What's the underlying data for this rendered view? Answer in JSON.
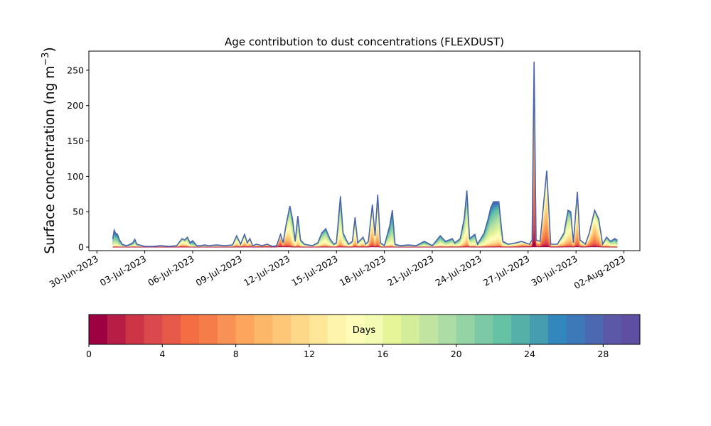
{
  "chart_data": {
    "type": "area",
    "stacked": true,
    "title": "Age contribution to dust concentrations (FLEXDUST)",
    "ylabel_text": "Surface concentration (ng m",
    "ylabel_exp": "−3",
    "ylabel_close": ")",
    "ylim": [
      -5,
      277
    ],
    "yticks": [
      0,
      50,
      100,
      150,
      200,
      250
    ],
    "x_start": "2023-06-29T12:00",
    "x_end": "2023-08-03T00:00",
    "xticks": [
      {
        "date": "2023-06-30",
        "label": "30-Jun-2023"
      },
      {
        "date": "2023-07-03",
        "label": "03-Jul-2023"
      },
      {
        "date": "2023-07-06",
        "label": "06-Jul-2023"
      },
      {
        "date": "2023-07-09",
        "label": "09-Jul-2023"
      },
      {
        "date": "2023-07-12",
        "label": "12-Jul-2023"
      },
      {
        "date": "2023-07-15",
        "label": "15-Jul-2023"
      },
      {
        "date": "2023-07-18",
        "label": "18-Jul-2023"
      },
      {
        "date": "2023-07-21",
        "label": "21-Jul-2023"
      },
      {
        "date": "2023-07-24",
        "label": "24-Jul-2023"
      },
      {
        "date": "2023-07-27",
        "label": "27-Jul-2023"
      },
      {
        "date": "2023-07-30",
        "label": "30-Jul-2023"
      },
      {
        "date": "2023-08-02",
        "label": "02-Aug-2023"
      }
    ],
    "total": [
      [
        "2023-07-01T00:00",
        12
      ],
      [
        "2023-07-01T02:00",
        24
      ],
      [
        "2023-07-01T04:00",
        20
      ],
      [
        "2023-07-01T07:00",
        18
      ],
      [
        "2023-07-01T10:00",
        10
      ],
      [
        "2023-07-01T14:00",
        4
      ],
      [
        "2023-07-01T20:00",
        2
      ],
      [
        "2023-07-02T00:00",
        3
      ],
      [
        "2023-07-02T06:00",
        6
      ],
      [
        "2023-07-02T09:00",
        11
      ],
      [
        "2023-07-02T12:00",
        4
      ],
      [
        "2023-07-03T00:00",
        1
      ],
      [
        "2023-07-03T12:00",
        1
      ],
      [
        "2023-07-04T00:00",
        2
      ],
      [
        "2023-07-04T12:00",
        1
      ],
      [
        "2023-07-05T00:00",
        2
      ],
      [
        "2023-07-05T08:00",
        12
      ],
      [
        "2023-07-05T12:00",
        10
      ],
      [
        "2023-07-05T16:00",
        14
      ],
      [
        "2023-07-05T20:00",
        6
      ],
      [
        "2023-07-06T00:00",
        9
      ],
      [
        "2023-07-06T06:00",
        2
      ],
      [
        "2023-07-06T12:00",
        2
      ],
      [
        "2023-07-06T18:00",
        3
      ],
      [
        "2023-07-07T00:00",
        2
      ],
      [
        "2023-07-07T12:00",
        3
      ],
      [
        "2023-07-08T00:00",
        2
      ],
      [
        "2023-07-08T12:00",
        3
      ],
      [
        "2023-07-08T18:00",
        16
      ],
      [
        "2023-07-09T00:00",
        4
      ],
      [
        "2023-07-09T06:00",
        18
      ],
      [
        "2023-07-09T10:00",
        6
      ],
      [
        "2023-07-09T14:00",
        12
      ],
      [
        "2023-07-09T18:00",
        2
      ],
      [
        "2023-07-10T00:00",
        4
      ],
      [
        "2023-07-10T08:00",
        2
      ],
      [
        "2023-07-10T16:00",
        4
      ],
      [
        "2023-07-11T00:00",
        1
      ],
      [
        "2023-07-11T06:00",
        2
      ],
      [
        "2023-07-11T12:00",
        18
      ],
      [
        "2023-07-11T16:00",
        6
      ],
      [
        "2023-07-11T20:00",
        30
      ],
      [
        "2023-07-12T02:00",
        58
      ],
      [
        "2023-07-12T06:00",
        40
      ],
      [
        "2023-07-12T10:00",
        8
      ],
      [
        "2023-07-12T14:00",
        44
      ],
      [
        "2023-07-12T18:00",
        10
      ],
      [
        "2023-07-13T00:00",
        4
      ],
      [
        "2023-07-13T12:00",
        2
      ],
      [
        "2023-07-13T20:00",
        6
      ],
      [
        "2023-07-14T02:00",
        20
      ],
      [
        "2023-07-14T08:00",
        26
      ],
      [
        "2023-07-14T14:00",
        12
      ],
      [
        "2023-07-14T20:00",
        4
      ],
      [
        "2023-07-15T00:00",
        6
      ],
      [
        "2023-07-15T06:00",
        72
      ],
      [
        "2023-07-15T10:00",
        20
      ],
      [
        "2023-07-15T18:00",
        4
      ],
      [
        "2023-07-16T00:00",
        8
      ],
      [
        "2023-07-16T04:00",
        42
      ],
      [
        "2023-07-16T08:00",
        6
      ],
      [
        "2023-07-16T16:00",
        14
      ],
      [
        "2023-07-16T20:00",
        4
      ],
      [
        "2023-07-17T00:00",
        8
      ],
      [
        "2023-07-17T06:00",
        60
      ],
      [
        "2023-07-17T10:00",
        16
      ],
      [
        "2023-07-17T14:00",
        74
      ],
      [
        "2023-07-17T18:00",
        6
      ],
      [
        "2023-07-18T00:00",
        2
      ],
      [
        "2023-07-18T08:00",
        30
      ],
      [
        "2023-07-18T12:00",
        52
      ],
      [
        "2023-07-18T16:00",
        4
      ],
      [
        "2023-07-19T00:00",
        2
      ],
      [
        "2023-07-19T12:00",
        3
      ],
      [
        "2023-07-20T00:00",
        2
      ],
      [
        "2023-07-20T12:00",
        8
      ],
      [
        "2023-07-21T00:00",
        2
      ],
      [
        "2023-07-21T12:00",
        16
      ],
      [
        "2023-07-21T20:00",
        8
      ],
      [
        "2023-07-22T06:00",
        12
      ],
      [
        "2023-07-22T10:00",
        6
      ],
      [
        "2023-07-22T18:00",
        12
      ],
      [
        "2023-07-23T00:00",
        40
      ],
      [
        "2023-07-23T04:00",
        80
      ],
      [
        "2023-07-23T08:00",
        12
      ],
      [
        "2023-07-23T16:00",
        18
      ],
      [
        "2023-07-23T20:00",
        4
      ],
      [
        "2023-07-24T06:00",
        20
      ],
      [
        "2023-07-24T12:00",
        40
      ],
      [
        "2023-07-24T16:00",
        56
      ],
      [
        "2023-07-24T20:00",
        64
      ],
      [
        "2023-07-25T04:00",
        64
      ],
      [
        "2023-07-25T10:00",
        8
      ],
      [
        "2023-07-25T18:00",
        4
      ],
      [
        "2023-07-26T06:00",
        6
      ],
      [
        "2023-07-26T14:00",
        8
      ],
      [
        "2023-07-26T20:00",
        6
      ],
      [
        "2023-07-27T02:00",
        4
      ],
      [
        "2023-07-27T06:00",
        10
      ],
      [
        "2023-07-27T09:00",
        262
      ],
      [
        "2023-07-27T12:00",
        10
      ],
      [
        "2023-07-27T18:00",
        8
      ],
      [
        "2023-07-28T04:00",
        108
      ],
      [
        "2023-07-28T10:00",
        4
      ],
      [
        "2023-07-28T20:00",
        4
      ],
      [
        "2023-07-29T06:00",
        20
      ],
      [
        "2023-07-29T12:00",
        52
      ],
      [
        "2023-07-29T16:00",
        50
      ],
      [
        "2023-07-29T20:00",
        6
      ],
      [
        "2023-07-30T02:00",
        78
      ],
      [
        "2023-07-30T06:00",
        10
      ],
      [
        "2023-07-30T14:00",
        4
      ],
      [
        "2023-07-30T20:00",
        20
      ],
      [
        "2023-07-31T04:00",
        52
      ],
      [
        "2023-07-31T10:00",
        40
      ],
      [
        "2023-07-31T16:00",
        4
      ],
      [
        "2023-07-31T22:00",
        14
      ],
      [
        "2023-08-01T04:00",
        8
      ],
      [
        "2023-08-01T10:00",
        12
      ],
      [
        "2023-08-01T14:00",
        10
      ]
    ],
    "young_share": [
      [
        "2023-07-01T00:00",
        0.02
      ],
      [
        "2023-07-05T12:00",
        0.5
      ],
      [
        "2023-07-06T00:00",
        0.02
      ],
      [
        "2023-07-11T12:00",
        0.9
      ],
      [
        "2023-07-12T06:00",
        0.3
      ],
      [
        "2023-07-15T06:00",
        0.3
      ],
      [
        "2023-07-17T06:00",
        0.6
      ],
      [
        "2023-07-17T14:00",
        0.5
      ],
      [
        "2023-07-18T12:00",
        0.05
      ],
      [
        "2023-07-23T04:00",
        0.3
      ],
      [
        "2023-07-24T20:00",
        0.15
      ],
      [
        "2023-07-27T09:00",
        0.9
      ],
      [
        "2023-07-28T04:00",
        0.7
      ],
      [
        "2023-07-29T12:00",
        0.4
      ],
      [
        "2023-07-30T02:00",
        0.6
      ],
      [
        "2023-07-31T04:00",
        0.7
      ],
      [
        "2023-08-01T14:00",
        0.1
      ]
    ],
    "colorbar": {
      "label": "Days",
      "min": 0,
      "max": 30,
      "ticks": [
        0,
        4,
        8,
        12,
        16,
        20,
        24,
        28
      ],
      "colors": [
        "#9e0142",
        "#b81d48",
        "#cd3446",
        "#dc494c",
        "#e75948",
        "#f46d43",
        "#f67d4a",
        "#f89154",
        "#fba55d",
        "#fdb768",
        "#fec778",
        "#fed889",
        "#fee799",
        "#fff4ab",
        "#fffcba",
        "#f3fab1",
        "#e6f598",
        "#d4ed9b",
        "#c1e5a0",
        "#abdda4",
        "#93d3a4",
        "#7bcaa5",
        "#66c2a5",
        "#55b0aa",
        "#459daf",
        "#3288bd",
        "#3d79b8",
        "#4b69b0",
        "#5b58a8",
        "#5e4fa2"
      ]
    }
  }
}
